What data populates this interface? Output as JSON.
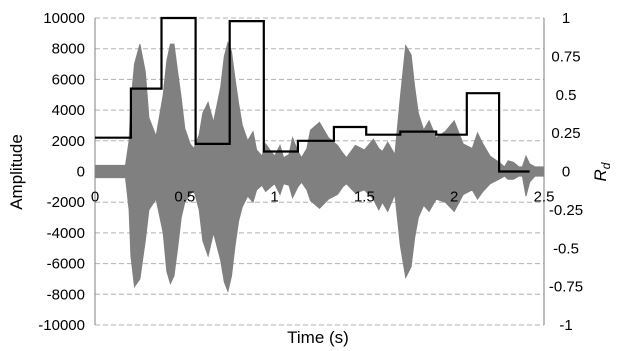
{
  "chart_data": {
    "type": "line",
    "xlabel": "Time (s)",
    "ylabel": "Amplitude",
    "y2label_main": "R",
    "y2label_sub": "d",
    "xlim": [
      0,
      2.5
    ],
    "ylim": [
      -10000,
      10000
    ],
    "y2lim": [
      -1,
      1
    ],
    "x_ticks": [
      "0",
      "0.5",
      "1",
      "1.5",
      "2",
      "2.5"
    ],
    "y_ticks": [
      "10000",
      "8000",
      "6000",
      "4000",
      "2000",
      "0",
      "-2000",
      "-4000",
      "-6000",
      "-8000",
      "-10000"
    ],
    "y2_ticks": [
      "1",
      "0.75",
      "0.5",
      "0.25",
      "0",
      "-0.25",
      "-0.5",
      "-0.75",
      "-1"
    ],
    "grid": "horizontal-dashed",
    "colors": {
      "waveform": "#808080",
      "rd_line": "#000000",
      "grid": "#b0b0b0",
      "axis": "#808080"
    },
    "series": [
      {
        "type": "area",
        "envelope_x": [
          0.0,
          0.1,
          0.17,
          0.19,
          0.2,
          0.22,
          0.25,
          0.28,
          0.3,
          0.34,
          0.38,
          0.4,
          0.42,
          0.44,
          0.46,
          0.48,
          0.5,
          0.53,
          0.55,
          0.58,
          0.6,
          0.63,
          0.66,
          0.7,
          0.72,
          0.74,
          0.76,
          0.78,
          0.8,
          0.82,
          0.85,
          0.88,
          0.9,
          0.93,
          0.95,
          0.98,
          1.0,
          1.03,
          1.05,
          1.08,
          1.1,
          1.13,
          1.15,
          1.18,
          1.2,
          1.25,
          1.3,
          1.35,
          1.38,
          1.4,
          1.45,
          1.5,
          1.55,
          1.58,
          1.6,
          1.63,
          1.67,
          1.7,
          1.73,
          1.76,
          1.78,
          1.8,
          1.83,
          1.86,
          1.9,
          1.95,
          2.0,
          2.05,
          2.1,
          2.13,
          2.16,
          2.2,
          2.25,
          2.28,
          2.3,
          2.33,
          2.36,
          2.38,
          2.4,
          2.42,
          2.45,
          2.5
        ],
        "envelope_top": [
          400,
          400,
          400,
          2000,
          4500,
          7000,
          8300,
          6500,
          3500,
          2300,
          5000,
          7200,
          8300,
          8300,
          6500,
          4800,
          2800,
          1800,
          1500,
          2400,
          3800,
          4500,
          3200,
          5500,
          7500,
          8400,
          7800,
          6000,
          4400,
          3000,
          2000,
          2600,
          1400,
          1000,
          1800,
          1300,
          1000,
          1700,
          900,
          1100,
          2200,
          1300,
          900,
          1500,
          2700,
          3200,
          2200,
          1700,
          1200,
          900,
          1700,
          1400,
          2100,
          1500,
          1300,
          1900,
          1100,
          4800,
          8200,
          7600,
          5500,
          3800,
          2700,
          3300,
          2200,
          2600,
          3300,
          1800,
          1500,
          2500,
          1800,
          1000,
          600,
          300,
          700,
          600,
          300,
          300,
          1000,
          500,
          300,
          300
        ],
        "envelope_bottom": [
          -400,
          -400,
          -400,
          -2500,
          -5500,
          -7500,
          -7000,
          -4500,
          -2500,
          -1800,
          -4000,
          -6500,
          -7300,
          -6800,
          -5000,
          -3000,
          -2000,
          -1500,
          -1200,
          -2500,
          -4500,
          -5500,
          -4000,
          -5800,
          -7200,
          -7800,
          -6800,
          -4800,
          -3200,
          -2300,
          -1600,
          -2000,
          -1200,
          -900,
          -1300,
          -1000,
          -800,
          -1500,
          -800,
          -900,
          -1700,
          -1000,
          -700,
          -1200,
          -1900,
          -2400,
          -1800,
          -1500,
          -1000,
          -800,
          -1400,
          -1200,
          -1800,
          -2500,
          -2000,
          -2600,
          -1500,
          -4800,
          -6900,
          -6200,
          -4300,
          -3000,
          -2200,
          -2600,
          -1800,
          -2000,
          -2600,
          -1500,
          -1200,
          -1800,
          -1300,
          -800,
          -500,
          -300,
          -500,
          -500,
          -300,
          -300,
          -1600,
          -700,
          -300,
          -300
        ]
      },
      {
        "type": "step",
        "axis": "right",
        "x": [
          0.0,
          0.17,
          0.2,
          0.37,
          0.56,
          0.75,
          0.94,
          1.13,
          1.33,
          1.51,
          1.7,
          1.9,
          2.07,
          2.25,
          2.42
        ],
        "y": [
          0.22,
          0.22,
          0.54,
          1.0,
          0.18,
          0.98,
          0.13,
          0.2,
          0.29,
          0.24,
          0.26,
          0.24,
          0.51,
          0.0,
          0.0
        ]
      }
    ]
  }
}
